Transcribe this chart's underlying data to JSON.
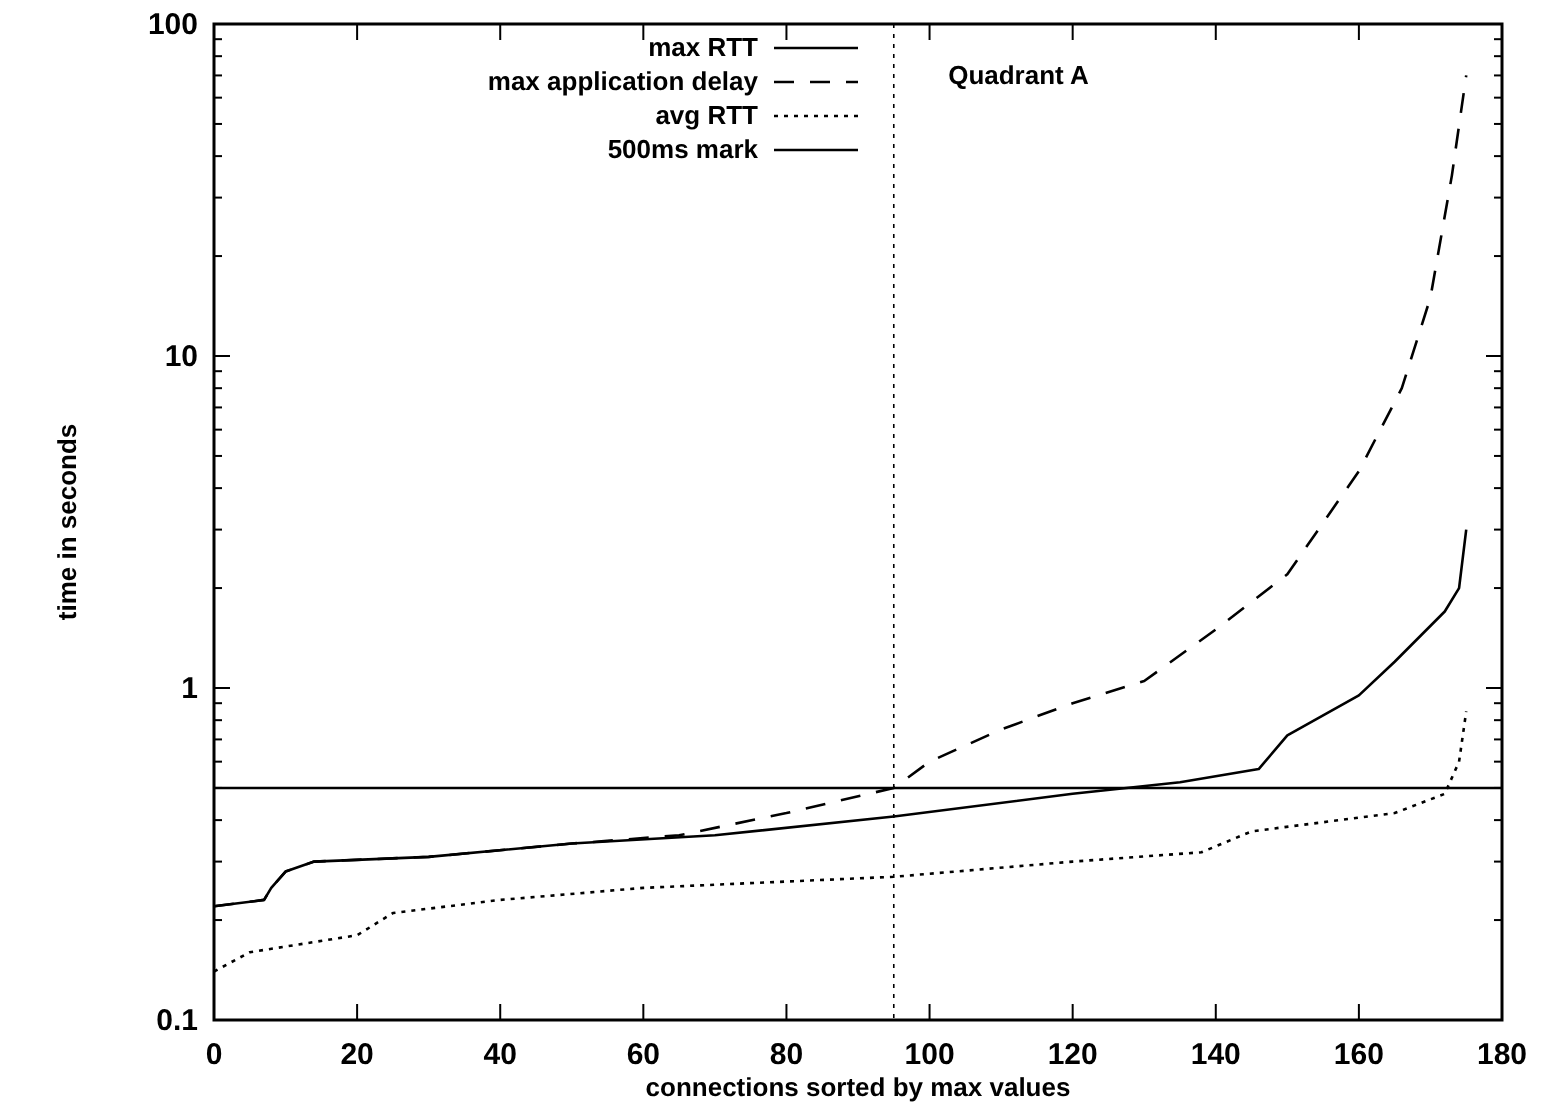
{
  "chart_data": {
    "type": "line",
    "xlabel": "connections sorted by max values",
    "ylabel": "time in seconds",
    "log": "y",
    "xlim": [
      0,
      180
    ],
    "xticks": [
      0,
      20,
      40,
      60,
      80,
      100,
      120,
      140,
      160,
      180
    ],
    "ylim": [
      0.1,
      100
    ],
    "yticks": [
      0.1,
      1,
      10,
      100
    ],
    "legend": "top",
    "grid": false,
    "series": [
      {
        "name": "max RTT",
        "color": "#000000",
        "line_style": "solid",
        "x": [
          0,
          7,
          8,
          10,
          14,
          30,
          50,
          70,
          95,
          120,
          135,
          146,
          150,
          160,
          165,
          172,
          174,
          175
        ],
        "values": [
          0.22,
          0.23,
          0.25,
          0.28,
          0.3,
          0.31,
          0.34,
          0.36,
          0.41,
          0.48,
          0.52,
          0.57,
          0.72,
          0.95,
          1.2,
          1.7,
          2.0,
          3.0
        ]
      },
      {
        "name": "max application delay",
        "color": "#000000",
        "line_style": "dashed",
        "x": [
          0,
          7,
          8,
          10,
          14,
          30,
          50,
          65,
          80,
          95,
          100,
          110,
          120,
          130,
          140,
          150,
          160,
          166,
          170,
          173,
          175
        ],
        "values": [
          0.22,
          0.23,
          0.25,
          0.28,
          0.3,
          0.31,
          0.34,
          0.36,
          0.42,
          0.5,
          0.6,
          0.75,
          0.9,
          1.05,
          1.5,
          2.2,
          4.5,
          8,
          15,
          35,
          70
        ]
      },
      {
        "name": "avg RTT",
        "color": "#000000",
        "line_style": "dotted",
        "x": [
          0,
          5,
          20,
          25,
          40,
          60,
          95,
          120,
          138,
          145,
          165,
          172,
          174,
          175
        ],
        "values": [
          0.14,
          0.16,
          0.18,
          0.21,
          0.23,
          0.25,
          0.27,
          0.3,
          0.32,
          0.37,
          0.42,
          0.48,
          0.6,
          0.85
        ]
      },
      {
        "name": "500ms mark",
        "color": "#000000",
        "line_style": "solid",
        "x": [
          0,
          180
        ],
        "values": [
          0.5,
          0.5
        ]
      }
    ],
    "ref_lines": [
      {
        "axis": "x",
        "value": 95,
        "color": "#000000",
        "line_style": "dotted"
      }
    ],
    "annotations": [
      "Quadrant A"
    ]
  }
}
